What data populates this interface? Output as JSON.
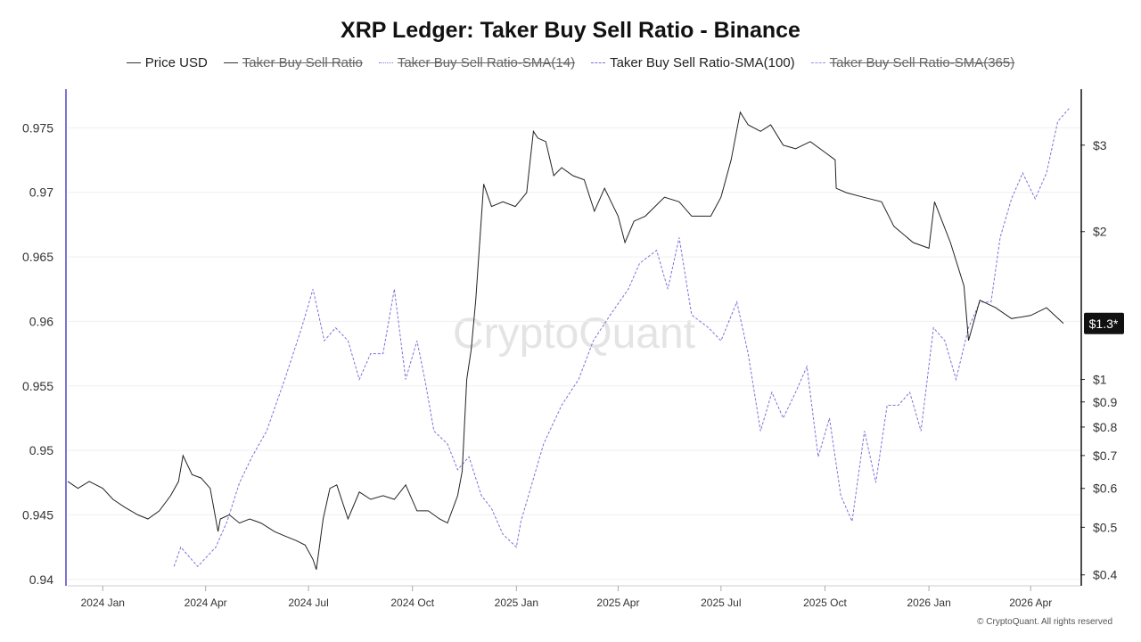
{
  "page": {
    "title": "XRP Ledger: Taker Buy Sell Ratio - Binance",
    "footer": "© CryptoQuant. All rights reserved",
    "watermark": "CryptoQuant"
  },
  "legend": [
    {
      "label": "Price USD",
      "enabled": true,
      "style": "solid",
      "color": "#222222"
    },
    {
      "label": "Taker Buy Sell Ratio",
      "enabled": false,
      "style": "solid",
      "color": "#333333"
    },
    {
      "label": "Taker Buy Sell Ratio-SMA(14)",
      "enabled": false,
      "style": "dotted",
      "color": "#7d72d8"
    },
    {
      "label": "Taker Buy Sell Ratio-SMA(100)",
      "enabled": true,
      "style": "dashed",
      "color": "#7d72d8"
    },
    {
      "label": "Taker Buy Sell Ratio-SMA(365)",
      "enabled": false,
      "style": "dashed",
      "color": "#9e96e3"
    }
  ],
  "chart_data": {
    "type": "line",
    "title": "XRP Ledger: Taker Buy Sell Ratio - Binance",
    "grid": true,
    "legend_position": "top-center",
    "x_ticks": [
      "2024 Jan",
      "2024 Apr",
      "2024 Jul",
      "2024 Oct",
      "2025 Jan",
      "2025 Apr",
      "2025 Jul",
      "2025 Oct",
      "2026 Jan",
      "2026 Apr"
    ],
    "x_range": [
      "2023-12-01",
      "2026-05-15"
    ],
    "y_left": {
      "ticks": [
        "0.975",
        "0.97",
        "0.965",
        "0.96",
        "0.955",
        "0.95",
        "0.945",
        "0.94"
      ],
      "range": [
        0.9395,
        0.978
      ]
    },
    "y_right": {
      "scale": "log",
      "ticks": [
        "$3",
        "$2",
        "$1",
        "$0.9",
        "$0.8",
        "$0.7",
        "$0.6",
        "$0.5",
        "$0.4"
      ],
      "range": [
        0.38,
        3.9
      ]
    },
    "current_price_label": "$1.3*",
    "series": [
      {
        "name": "Price USD",
        "axis": "right",
        "color": "#222222",
        "x": [
          "2023-12-01",
          "2023-12-10",
          "2023-12-20",
          "2024-01-01",
          "2024-01-10",
          "2024-01-20",
          "2024-02-01",
          "2024-02-10",
          "2024-02-20",
          "2024-03-01",
          "2024-03-08",
          "2024-03-12",
          "2024-03-20",
          "2024-03-28",
          "2024-04-05",
          "2024-04-12",
          "2024-04-14",
          "2024-04-22",
          "2024-05-01",
          "2024-05-10",
          "2024-05-20",
          "2024-06-01",
          "2024-06-10",
          "2024-06-20",
          "2024-06-28",
          "2024-07-05",
          "2024-07-08",
          "2024-07-14",
          "2024-07-20",
          "2024-07-26",
          "2024-08-05",
          "2024-08-15",
          "2024-08-25",
          "2024-09-05",
          "2024-09-15",
          "2024-09-25",
          "2024-10-05",
          "2024-10-15",
          "2024-10-25",
          "2024-11-01",
          "2024-11-10",
          "2024-11-14",
          "2024-11-18",
          "2024-11-22",
          "2024-11-26",
          "2024-12-03",
          "2024-12-10",
          "2024-12-20",
          "2024-12-31",
          "2025-01-10",
          "2025-01-16",
          "2025-01-20",
          "2025-01-27",
          "2025-02-03",
          "2025-02-10",
          "2025-02-20",
          "2025-03-02",
          "2025-03-11",
          "2025-03-20",
          "2025-04-01",
          "2025-04-07",
          "2025-04-15",
          "2025-04-25",
          "2025-05-12",
          "2025-05-25",
          "2025-06-05",
          "2025-06-22",
          "2025-07-01",
          "2025-07-10",
          "2025-07-18",
          "2025-07-25",
          "2025-08-05",
          "2025-08-14",
          "2025-08-25",
          "2025-09-05",
          "2025-09-18",
          "2025-10-01",
          "2025-10-10",
          "2025-10-11",
          "2025-10-20",
          "2025-11-04",
          "2025-11-20",
          "2025-12-01",
          "2025-12-18",
          "2026-01-01",
          "2026-01-06",
          "2026-01-20",
          "2026-02-01",
          "2026-02-05",
          "2026-02-15",
          "2026-03-01",
          "2026-03-15",
          "2026-04-01",
          "2026-04-15",
          "2026-04-30"
        ],
        "values": [
          0.62,
          0.6,
          0.62,
          0.6,
          0.57,
          0.55,
          0.53,
          0.52,
          0.54,
          0.58,
          0.62,
          0.7,
          0.64,
          0.63,
          0.6,
          0.49,
          0.52,
          0.53,
          0.51,
          0.52,
          0.51,
          0.49,
          0.48,
          0.47,
          0.46,
          0.43,
          0.41,
          0.52,
          0.6,
          0.61,
          0.52,
          0.59,
          0.57,
          0.58,
          0.57,
          0.61,
          0.54,
          0.54,
          0.52,
          0.51,
          0.58,
          0.65,
          1.0,
          1.15,
          1.45,
          2.5,
          2.25,
          2.3,
          2.25,
          2.4,
          3.2,
          3.1,
          3.05,
          2.6,
          2.7,
          2.6,
          2.55,
          2.2,
          2.45,
          2.15,
          1.9,
          2.1,
          2.15,
          2.35,
          2.3,
          2.15,
          2.15,
          2.35,
          2.8,
          3.5,
          3.3,
          3.2,
          3.3,
          3.0,
          2.95,
          3.05,
          2.9,
          2.8,
          2.45,
          2.4,
          2.35,
          2.3,
          2.05,
          1.9,
          1.85,
          2.3,
          1.9,
          1.55,
          1.2,
          1.45,
          1.4,
          1.33,
          1.35,
          1.4,
          1.3
        ]
      },
      {
        "name": "Taker Buy Sell Ratio-SMA(100)",
        "axis": "left",
        "color": "#7d72d8",
        "x": [
          "2024-03-04",
          "2024-03-10",
          "2024-03-25",
          "2024-04-10",
          "2024-04-20",
          "2024-05-01",
          "2024-05-12",
          "2024-05-25",
          "2024-06-10",
          "2024-06-25",
          "2024-07-05",
          "2024-07-15",
          "2024-07-25",
          "2024-08-05",
          "2024-08-15",
          "2024-08-25",
          "2024-09-05",
          "2024-09-15",
          "2024-09-25",
          "2024-10-05",
          "2024-10-12",
          "2024-10-20",
          "2024-11-01",
          "2024-11-10",
          "2024-11-20",
          "2024-12-01",
          "2024-12-10",
          "2024-12-20",
          "2025-01-01",
          "2025-01-05",
          "2025-01-15",
          "2025-01-25",
          "2025-02-10",
          "2025-02-25",
          "2025-03-10",
          "2025-03-25",
          "2025-04-10",
          "2025-04-20",
          "2025-05-05",
          "2025-05-15",
          "2025-05-25",
          "2025-06-05",
          "2025-06-20",
          "2025-07-01",
          "2025-07-15",
          "2025-07-25",
          "2025-08-05",
          "2025-08-15",
          "2025-08-25",
          "2025-09-05",
          "2025-09-15",
          "2025-09-25",
          "2025-10-05",
          "2025-10-15",
          "2025-10-25",
          "2025-11-05",
          "2025-11-15",
          "2025-11-25",
          "2025-12-05",
          "2025-12-15",
          "2025-12-25",
          "2026-01-05",
          "2026-01-15",
          "2026-01-25",
          "2026-02-05",
          "2026-02-15",
          "2026-02-25",
          "2026-03-05",
          "2026-03-15",
          "2026-03-25",
          "2026-04-05",
          "2026-04-15",
          "2026-04-25",
          "2026-05-05"
        ],
        "values": [
          0.941,
          0.9425,
          0.941,
          0.9425,
          0.9445,
          0.9475,
          0.9495,
          0.9515,
          0.9555,
          0.9595,
          0.9625,
          0.9585,
          0.9595,
          0.9585,
          0.9555,
          0.9575,
          0.9575,
          0.9625,
          0.9555,
          0.9585,
          0.9555,
          0.9515,
          0.9505,
          0.9485,
          0.9495,
          0.9465,
          0.9455,
          0.9435,
          0.9425,
          0.9445,
          0.9475,
          0.9505,
          0.9535,
          0.9555,
          0.9585,
          0.9605,
          0.9625,
          0.9645,
          0.9655,
          0.9625,
          0.9665,
          0.9605,
          0.9595,
          0.9585,
          0.9615,
          0.9575,
          0.9515,
          0.9545,
          0.9525,
          0.9545,
          0.9565,
          0.9495,
          0.9525,
          0.9465,
          0.9445,
          0.9515,
          0.9475,
          0.9535,
          0.9535,
          0.9545,
          0.9515,
          0.9595,
          0.9585,
          0.9555,
          0.9595,
          0.9615,
          0.9615,
          0.9665,
          0.9695,
          0.9715,
          0.9695,
          0.9715,
          0.9755,
          0.9765
        ]
      }
    ]
  }
}
